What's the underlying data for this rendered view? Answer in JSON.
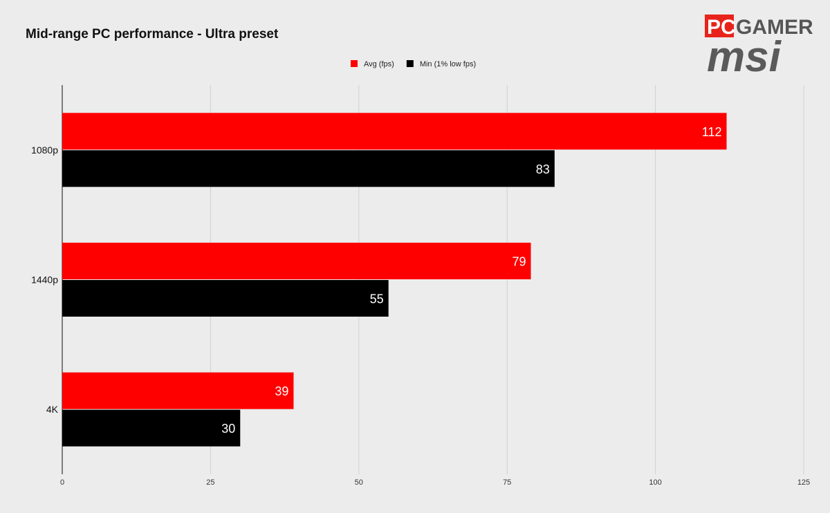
{
  "chart_data": {
    "type": "bar",
    "orientation": "horizontal",
    "title": "Mid-range PC performance - Ultra preset",
    "categories": [
      "1080p",
      "1440p",
      "4K"
    ],
    "series": [
      {
        "name": "Avg (fps)",
        "color": "#ff0000",
        "values": [
          112,
          79,
          39
        ]
      },
      {
        "name": "Min (1% low fps)",
        "color": "#000000",
        "values": [
          83,
          55,
          30
        ]
      }
    ],
    "xlim": [
      0,
      125
    ],
    "ticks": [
      0,
      25,
      50,
      75,
      100,
      125
    ],
    "grid": true,
    "legend_position": "top-center",
    "data_labels": true
  },
  "branding": {
    "pc": "PC",
    "gamer": "GAMER",
    "msi": "msi",
    "pc_color": "#e8231b"
  }
}
